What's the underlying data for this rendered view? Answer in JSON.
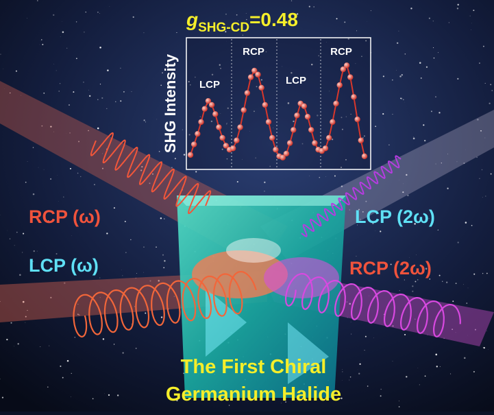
{
  "chart_data": {
    "type": "line",
    "title": "g",
    "title_subscript": "SHG-CD",
    "title_suffix": "=0.48",
    "ylabel": "SHG Intensity",
    "annotations": [
      "LCP",
      "RCP",
      "LCP",
      "RCP"
    ],
    "color": "#d8372b",
    "ylim": [
      0,
      100
    ],
    "values": [
      11,
      19,
      27,
      36,
      46,
      52,
      49,
      42,
      32,
      24,
      18,
      15,
      16,
      22,
      32,
      45,
      58,
      70,
      75,
      72,
      62,
      49,
      36,
      24,
      15,
      10,
      9,
      12,
      20,
      30,
      41,
      50,
      48,
      40,
      30,
      20,
      15,
      14,
      16,
      24,
      36,
      50,
      64,
      76,
      79,
      70,
      55,
      38,
      22,
      10
    ]
  },
  "labels": {
    "rcp_in": "RCP (ω)",
    "lcp_in": "LCP (ω)",
    "lcp_out": "LCP (2ω)",
    "rcp_out": "RCP (2ω)"
  },
  "caption": [
    "The First Chiral",
    "Germanium Halide"
  ]
}
